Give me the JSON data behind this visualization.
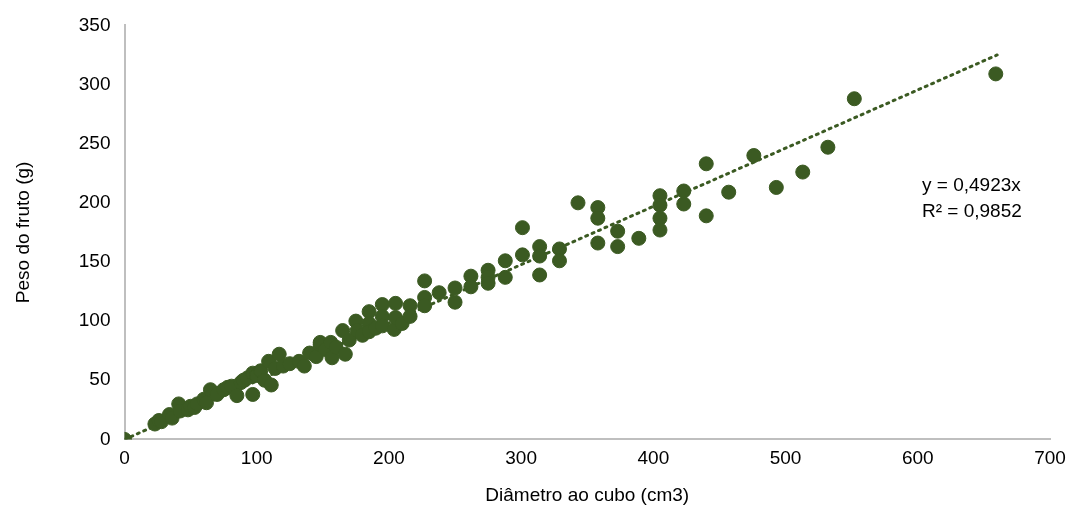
{
  "chart_data": {
    "type": "scatter",
    "xlabel": "Diâmetro ao cubo (cm3)",
    "ylabel": "Peso do fruto (g)",
    "xlim": [
      0,
      700
    ],
    "xticks": [
      0,
      100,
      200,
      300,
      400,
      500,
      600,
      700
    ],
    "ylim": [
      0,
      350
    ],
    "yticks": [
      0,
      50,
      100,
      150,
      200,
      250,
      300,
      350
    ],
    "grid": false,
    "legend": false,
    "annotations": [
      "y = 0,4923x",
      "R² = 0,9852"
    ],
    "series": [
      {
        "color": "#3b5a22",
        "marker": "circle",
        "x": [
          0,
          23,
          26,
          28,
          34,
          36,
          41,
          42,
          48,
          50,
          53,
          55,
          60,
          62,
          65,
          70,
          75,
          78,
          81,
          85,
          88,
          90,
          93,
          97,
          97,
          100,
          103,
          106,
          109,
          111,
          114,
          117,
          120,
          125,
          132,
          136,
          140,
          145,
          148,
          148,
          152,
          156,
          157,
          160,
          165,
          167,
          170,
          175,
          176,
          180,
          185,
          185,
          185,
          190,
          195,
          195,
          195,
          204,
          205,
          205,
          210,
          216,
          216,
          227,
          227,
          227,
          238,
          250,
          250,
          262,
          262,
          275,
          275,
          275,
          288,
          288,
          301,
          301,
          314,
          314,
          314,
          329,
          329,
          343,
          358,
          358,
          358,
          373,
          373,
          389,
          405,
          405,
          405,
          405,
          423,
          423,
          440,
          440,
          457,
          476,
          493,
          513,
          532,
          552,
          659
        ],
        "values": [
          0,
          13,
          16,
          15,
          21,
          18,
          30,
          24,
          25,
          28,
          27,
          30,
          34,
          31,
          42,
          38,
          42,
          44,
          45,
          37,
          48,
          50,
          52,
          56,
          38,
          54,
          58,
          50,
          66,
          46,
          60,
          72,
          62,
          64,
          66,
          62,
          73,
          70,
          80,
          82,
          76,
          82,
          69,
          78,
          92,
          72,
          84,
          100,
          92,
          88,
          108,
          98,
          91,
          94,
          114,
          104,
          96,
          93,
          115,
          103,
          98,
          113,
          104,
          134,
          120,
          113,
          124,
          128,
          116,
          138,
          129,
          143,
          137,
          132,
          151,
          137,
          179,
          156,
          163,
          155,
          139,
          161,
          151,
          200,
          196,
          187,
          166,
          176,
          163,
          170,
          206,
          198,
          187,
          177,
          210,
          199,
          233,
          189,
          209,
          240,
          213,
          226,
          247,
          288,
          309
        ]
      },
      {
        "type": "line",
        "color": "#3b5a22",
        "marker": "none",
        "line_style": "dotted",
        "x": [
          0,
          660
        ],
        "values": [
          0,
          325
        ]
      }
    ]
  }
}
